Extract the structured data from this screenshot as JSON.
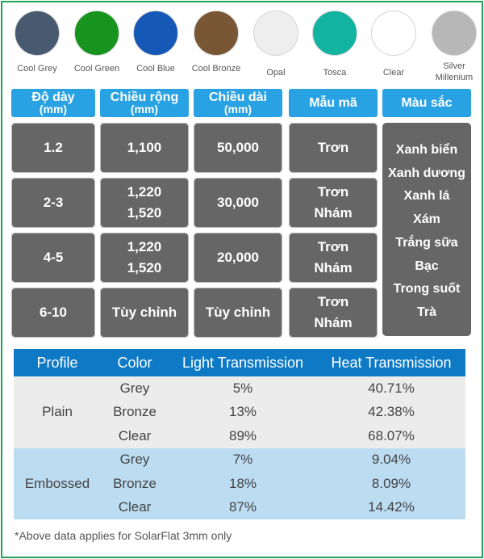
{
  "swatches": [
    {
      "label": "Cool Grey",
      "color": "#475a70"
    },
    {
      "label": "Cool Green",
      "color": "#17941e"
    },
    {
      "label": "Cool Blue",
      "color": "#1558b6"
    },
    {
      "label": "Cool Bronze",
      "color": "#7a5734"
    },
    {
      "label": "Opal",
      "color": "#eeeeee"
    },
    {
      "label": "Tosca",
      "color": "#12b3a0"
    },
    {
      "label": "Clear",
      "color": "#ffffff"
    },
    {
      "label": "Silver Millenium",
      "color": "#b7b7b7"
    }
  ],
  "headers": {
    "thickness": {
      "line1": "Độ dày",
      "line2": "(mm)"
    },
    "width": {
      "line1": "Chiều rộng",
      "line2": "(mm)"
    },
    "length": {
      "line1": "Chiều dài",
      "line2": "(mm)"
    },
    "pattern": "Mẫu mã",
    "color": "Màu sắc"
  },
  "rows": [
    {
      "thickness": "1.2",
      "width": [
        "1,100"
      ],
      "length": "50,000",
      "pattern": [
        "Trơn"
      ]
    },
    {
      "thickness": "2-3",
      "width": [
        "1,220",
        "1,520"
      ],
      "length": "30,000",
      "pattern": [
        "Trơn",
        "Nhám"
      ]
    },
    {
      "thickness": "4-5",
      "width": [
        "1,220",
        "1,520"
      ],
      "length": "20,000",
      "pattern": [
        "Trơn",
        "Nhám"
      ]
    },
    {
      "thickness": "6-10",
      "width": [
        "Tùy chỉnh"
      ],
      "length": "Tùy chỉnh",
      "pattern": [
        "Trơn",
        "Nhám"
      ]
    }
  ],
  "colors_list": [
    "Xanh biển",
    "Xanh dương",
    "Xanh lá",
    "Xám",
    "Trắng sữa",
    "Bạc",
    "Trong suốt",
    "Trà"
  ],
  "spec_table": {
    "headers": [
      "Profile",
      "Color",
      "Light Transmission",
      "Heat Transmission"
    ],
    "groups": [
      {
        "profile": "Plain",
        "rows": [
          {
            "color": "Grey",
            "light": "5%",
            "heat": "40.71%"
          },
          {
            "color": "Bronze",
            "light": "13%",
            "heat": "42.38%"
          },
          {
            "color": "Clear",
            "light": "89%",
            "heat": "68.07%"
          }
        ]
      },
      {
        "profile": "Embossed",
        "rows": [
          {
            "color": "Grey",
            "light": "7%",
            "heat": "9.04%"
          },
          {
            "color": "Bronze",
            "light": "18%",
            "heat": "8.09%"
          },
          {
            "color": "Clear",
            "light": "87%",
            "heat": "14.42%"
          }
        ]
      }
    ]
  },
  "note": "*Above data applies for SolarFlat 3mm only"
}
